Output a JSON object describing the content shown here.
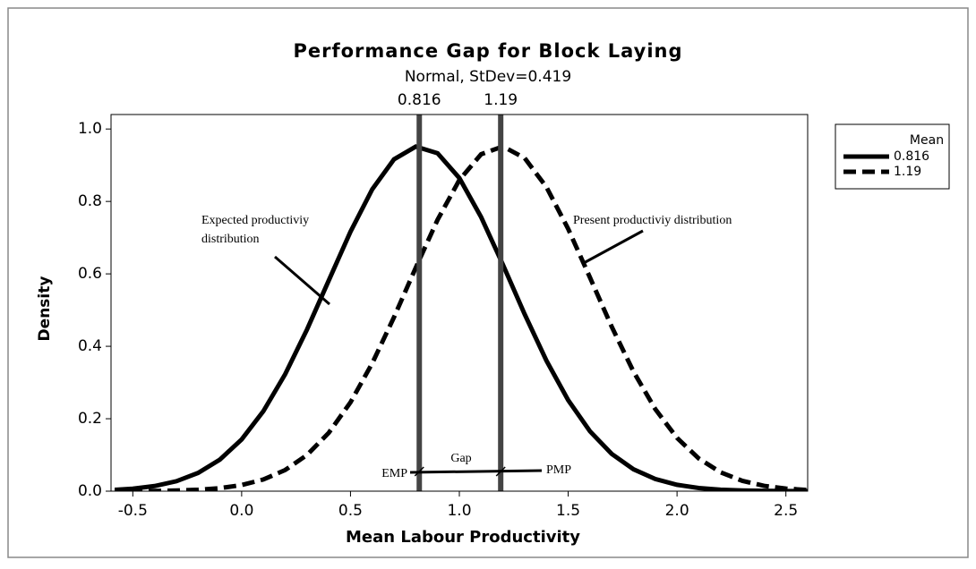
{
  "chart_data": {
    "type": "line",
    "title": "Performance Gap for Block Laying",
    "subtitle": "Normal, StDev=0.419",
    "x_label": "Mean Labour Productivity",
    "y_label": "Density",
    "legend_title": "Mean",
    "x": [
      -0.6,
      -0.5,
      -0.4,
      -0.3,
      -0.2,
      -0.1,
      0,
      0.1,
      0.2,
      0.3,
      0.4,
      0.5,
      0.6,
      0.7,
      0.8,
      0.9,
      1.0,
      1.1,
      1.2,
      1.3,
      1.4,
      1.5,
      1.6,
      1.7,
      1.8,
      1.9,
      2.0,
      2.1,
      2.2,
      2.3,
      2.4,
      2.5,
      2.6
    ],
    "series": [
      {
        "name": "0.816",
        "color": "#000000",
        "line_style": "solid",
        "values": [
          0.0032,
          0.0069,
          0.0141,
          0.0274,
          0.0503,
          0.0872,
          0.1429,
          0.2211,
          0.3231,
          0.4461,
          0.5816,
          0.7165,
          0.8337,
          0.9163,
          0.9514,
          0.9331,
          0.8646,
          0.7567,
          0.6256,
          0.4886,
          0.3605,
          0.2512,
          0.1654,
          0.1028,
          0.0604,
          0.0335,
          0.0176,
          0.0087,
          0.0041,
          0.0018,
          0.0008,
          0.0003,
          0.0001
        ]
      },
      {
        "name": "1.19",
        "color": "#000000",
        "line_style": "dashed",
        "values": [
          0.0001,
          0.0003,
          0.0007,
          0.0017,
          0.0039,
          0.0083,
          0.0169,
          0.0323,
          0.0584,
          0.0998,
          0.161,
          0.2454,
          0.3533,
          0.4805,
          0.6174,
          0.7493,
          0.8591,
          0.9304,
          0.9518,
          0.9198,
          0.8397,
          0.7242,
          0.5899,
          0.4539,
          0.33,
          0.2266,
          0.147,
          0.0901,
          0.0521,
          0.0285,
          0.0147,
          0.0072,
          0.0033
        ]
      }
    ],
    "reference_lines": [
      0.816,
      1.19
    ],
    "reference_color": "#444444",
    "xlim": [
      -0.6,
      2.6
    ],
    "ylim": [
      0,
      1.04
    ],
    "xticks": [
      -0.5,
      {
        "value": 0,
        "label": "0.0"
      },
      0.5,
      {
        "value": 1,
        "label": "1.0"
      },
      1.5,
      {
        "value": 2,
        "label": "2.0"
      },
      2.5
    ],
    "yticks": [
      {
        "value": 0,
        "label": "0.0"
      },
      0.2,
      0.4,
      0.6,
      0.8,
      {
        "value": 1,
        "label": "1.0"
      }
    ],
    "annotations": {
      "expected": [
        "Expected productiviy",
        "distribution"
      ],
      "present": "Present productiviy distribution",
      "gap": "Gap",
      "emp": "EMP",
      "pmp": "PMP"
    }
  }
}
